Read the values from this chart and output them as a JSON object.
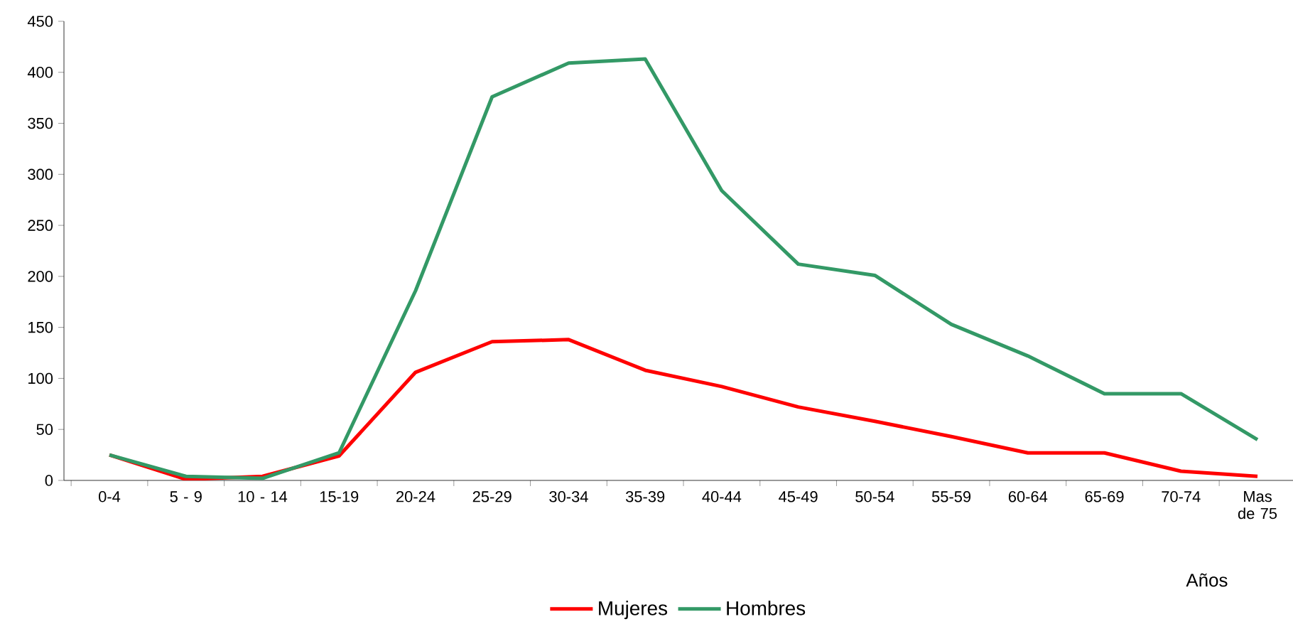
{
  "chart_data": {
    "type": "line",
    "xlabel": "Años",
    "categories": [
      "0-4",
      "5 -  9",
      "10 - 14",
      "15-19",
      "20-24",
      "25-29",
      "30-34",
      "35-39",
      "40-44",
      "45-49",
      "50-54",
      "55-59",
      "60-64",
      "65-69",
      "70-74",
      "Mas de 75"
    ],
    "series": [
      {
        "name": "Mujeres",
        "color": "#ff0000",
        "values": [
          25,
          1,
          4,
          24,
          106,
          136,
          138,
          108,
          92,
          72,
          58,
          43,
          27,
          27,
          9,
          4
        ]
      },
      {
        "name": "Hombres",
        "color": "#339966",
        "values": [
          25,
          4,
          2,
          27,
          186,
          376,
          409,
          413,
          284,
          212,
          201,
          153,
          122,
          85,
          85,
          40
        ]
      }
    ],
    "ylim": [
      0,
      450
    ],
    "yticks": [
      0,
      50,
      100,
      150,
      200,
      250,
      300,
      350,
      400,
      450
    ],
    "grid": false,
    "legend": "bottom",
    "marker": "none",
    "line_style": "solid"
  }
}
